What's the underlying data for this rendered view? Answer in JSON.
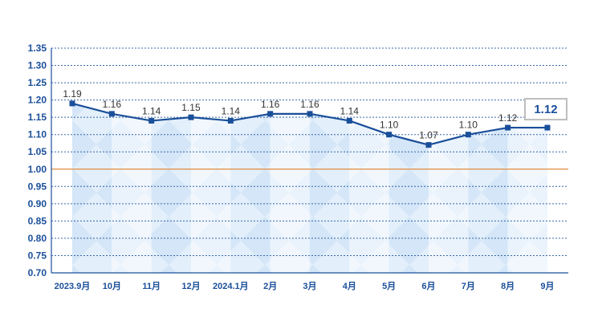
{
  "chart_data": {
    "type": "line",
    "title": "",
    "xlabel": "",
    "ylabel": "",
    "categories": [
      "2023.9月",
      "10月",
      "11月",
      "12月",
      "2024.1月",
      "2月",
      "3月",
      "4月",
      "5月",
      "6月",
      "7月",
      "8月",
      "9月"
    ],
    "values": [
      1.19,
      1.16,
      1.14,
      1.15,
      1.14,
      1.16,
      1.16,
      1.14,
      1.1,
      1.07,
      1.1,
      1.12,
      1.12
    ],
    "value_labels": [
      "1.19",
      "1.16",
      "1.14",
      "1.15",
      "1.14",
      "1.16",
      "1.16",
      "1.14",
      "1.10",
      "1.07",
      "1.10",
      "1.12",
      ""
    ],
    "ylim": [
      0.7,
      1.35
    ],
    "yticks": [
      "0.70",
      "0.75",
      "0.80",
      "0.85",
      "0.90",
      "0.95",
      "1.00",
      "1.05",
      "1.10",
      "1.15",
      "1.20",
      "1.25",
      "1.30",
      "1.35"
    ],
    "reference_line": 1.0,
    "highlight_label": "1.12",
    "grid": true,
    "colors": {
      "line": "#1a4f9a",
      "marker": "#1a4f9a",
      "grid": "#1a4f9a",
      "reference": "#e08a3c",
      "area_light": "#eaf3fc",
      "area_dark": "#d4e6f7",
      "highlight_border": "#bdbdbd"
    }
  }
}
